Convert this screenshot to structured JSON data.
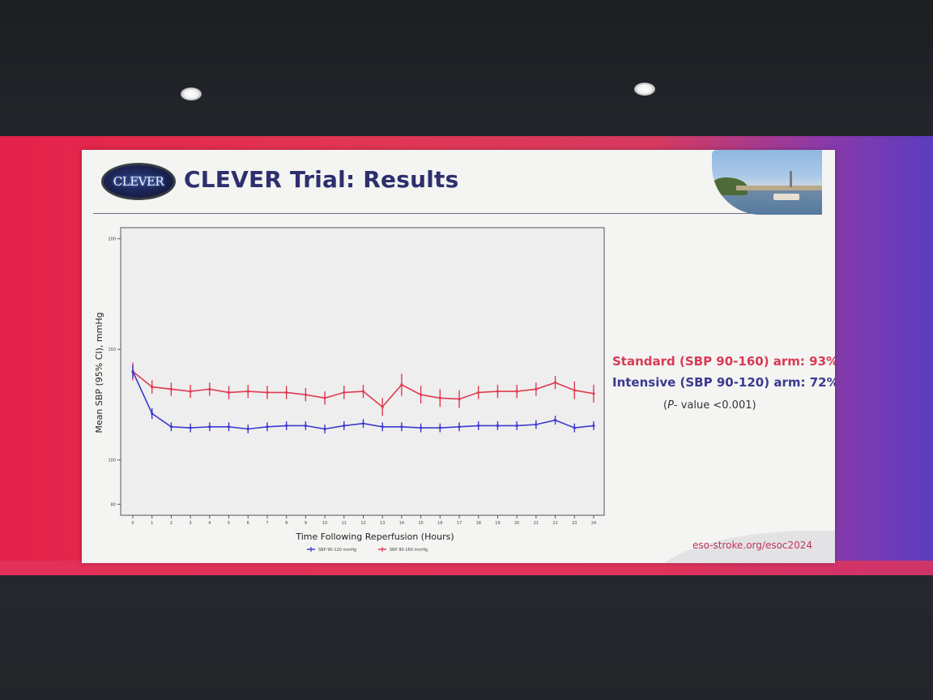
{
  "slide": {
    "logo_text": "CLEVER",
    "title": "CLEVER Trial: Results",
    "footer_url": "eso-stroke.org/esoc2024",
    "pvalue_italic": "P",
    "pvalue_rest": "- value <0.001)",
    "pvalue_open": "(",
    "legend_standard": "Standard (SBP 90-160) arm: 93%",
    "legend_intensive": "Intensive (SBP 90-120) arm: 72%"
  },
  "colors": {
    "intensive": "#3c3ad0",
    "standard": "#e03a52",
    "title": "#2d2f6e"
  },
  "chart_data": {
    "type": "line",
    "xlabel": "Time Following Reperfusion (Hours)",
    "ylabel": "Mean SBP (95% CI), mmHg",
    "xlim": [
      0,
      24
    ],
    "ylim": [
      75,
      205
    ],
    "yticks": [
      80,
      100,
      150,
      200
    ],
    "ytick_labels": [
      "80",
      "100",
      "150",
      "200"
    ],
    "x": [
      0,
      1,
      2,
      3,
      4,
      5,
      6,
      7,
      8,
      9,
      10,
      11,
      12,
      13,
      14,
      15,
      16,
      17,
      18,
      19,
      20,
      21,
      22,
      23,
      24
    ],
    "series": [
      {
        "name": "SBP 90-120 mmHg",
        "color": "#3c3ad0",
        "values": [
          140,
          121,
          115,
          114.5,
          115,
          115,
          114,
          115,
          115.5,
          115.5,
          114,
          115.5,
          116.5,
          115,
          115,
          114.5,
          114.5,
          115,
          115.5,
          115.5,
          115.5,
          116,
          118,
          114.5,
          115.5
        ],
        "error": [
          3,
          2.5,
          2,
          2,
          2,
          2,
          2,
          2,
          2,
          2,
          2,
          2,
          2,
          2,
          2,
          2,
          2,
          2,
          2,
          2,
          2,
          2,
          2,
          2,
          2
        ]
      },
      {
        "name": "SBP 90-160 mmHg",
        "color": "#e03a52",
        "values": [
          140,
          133,
          132,
          131,
          132,
          130.5,
          131,
          130.5,
          130.5,
          129.5,
          128,
          130.5,
          131,
          124,
          134,
          129.5,
          128,
          127.5,
          130.5,
          131,
          131,
          132,
          135,
          131.5,
          130
        ],
        "error": [
          4,
          3,
          3,
          3,
          3,
          3,
          3,
          3,
          3,
          3,
          3,
          3,
          3,
          4,
          5,
          4,
          4,
          4,
          3,
          3,
          3,
          3,
          3,
          4,
          4
        ]
      }
    ]
  }
}
